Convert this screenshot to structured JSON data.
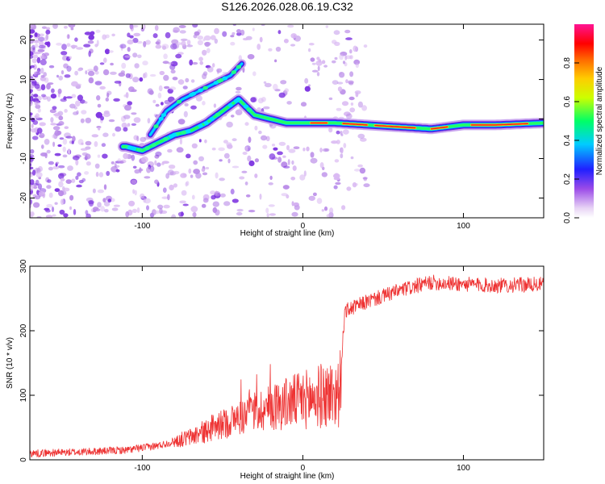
{
  "title": "S126.2026.028.06.19.C32",
  "chart_data": [
    {
      "type": "heatmap",
      "xlabel": "Height of straight line (km)",
      "ylabel": "Frequency (Hz)",
      "xlim": [
        -170,
        150
      ],
      "ylim": [
        -25,
        24
      ],
      "xticks": [
        -100,
        0,
        100
      ],
      "yticks": [
        -20,
        -10,
        0,
        10,
        20
      ],
      "colorbar": {
        "label": "Normalized spectral amplitude",
        "range": [
          0,
          1
        ],
        "ticks": [
          "0.0",
          "0.2",
          "0.4",
          "0.6",
          "0.8"
        ]
      },
      "ridge": [
        {
          "x": -110,
          "y": -7
        },
        {
          "x": -100,
          "y": -8
        },
        {
          "x": -90,
          "y": -6
        },
        {
          "x": -80,
          "y": -4
        },
        {
          "x": -70,
          "y": -3
        },
        {
          "x": -60,
          "y": -1
        },
        {
          "x": -50,
          "y": 2
        },
        {
          "x": -40,
          "y": 5
        },
        {
          "x": -35,
          "y": 3
        },
        {
          "x": -30,
          "y": 1
        },
        {
          "x": -20,
          "y": 0
        },
        {
          "x": -10,
          "y": -1
        },
        {
          "x": 0,
          "y": -1
        },
        {
          "x": 20,
          "y": -1
        },
        {
          "x": 40,
          "y": -1.5
        },
        {
          "x": 60,
          "y": -2
        },
        {
          "x": 80,
          "y": -2.5
        },
        {
          "x": 100,
          "y": -1.5
        },
        {
          "x": 120,
          "y": -1.5
        },
        {
          "x": 150,
          "y": -1
        }
      ],
      "upper_branch": [
        {
          "x": -95,
          "y": -4
        },
        {
          "x": -85,
          "y": 2
        },
        {
          "x": -75,
          "y": 5
        },
        {
          "x": -65,
          "y": 7
        },
        {
          "x": -55,
          "y": 9
        },
        {
          "x": -45,
          "y": 11
        },
        {
          "x": -38,
          "y": 14
        }
      ]
    },
    {
      "type": "line",
      "xlabel": "Height of straight line (km)",
      "ylabel": "SNR (10 * v/v)",
      "xlim": [
        -170,
        150
      ],
      "ylim": [
        0,
        300
      ],
      "xticks": [
        -100,
        0,
        100
      ],
      "yticks": [
        0,
        100,
        200,
        300
      ],
      "color": "#ee3333",
      "trend": [
        {
          "x": -170,
          "y": 10
        },
        {
          "x": -140,
          "y": 12
        },
        {
          "x": -110,
          "y": 15
        },
        {
          "x": -90,
          "y": 22
        },
        {
          "x": -70,
          "y": 35
        },
        {
          "x": -50,
          "y": 55
        },
        {
          "x": -30,
          "y": 75
        },
        {
          "x": -10,
          "y": 88
        },
        {
          "x": 10,
          "y": 98
        },
        {
          "x": 23,
          "y": 105
        },
        {
          "x": 26,
          "y": 230
        },
        {
          "x": 40,
          "y": 245
        },
        {
          "x": 60,
          "y": 262
        },
        {
          "x": 80,
          "y": 275
        },
        {
          "x": 100,
          "y": 272
        },
        {
          "x": 120,
          "y": 270
        },
        {
          "x": 150,
          "y": 272
        }
      ]
    }
  ]
}
